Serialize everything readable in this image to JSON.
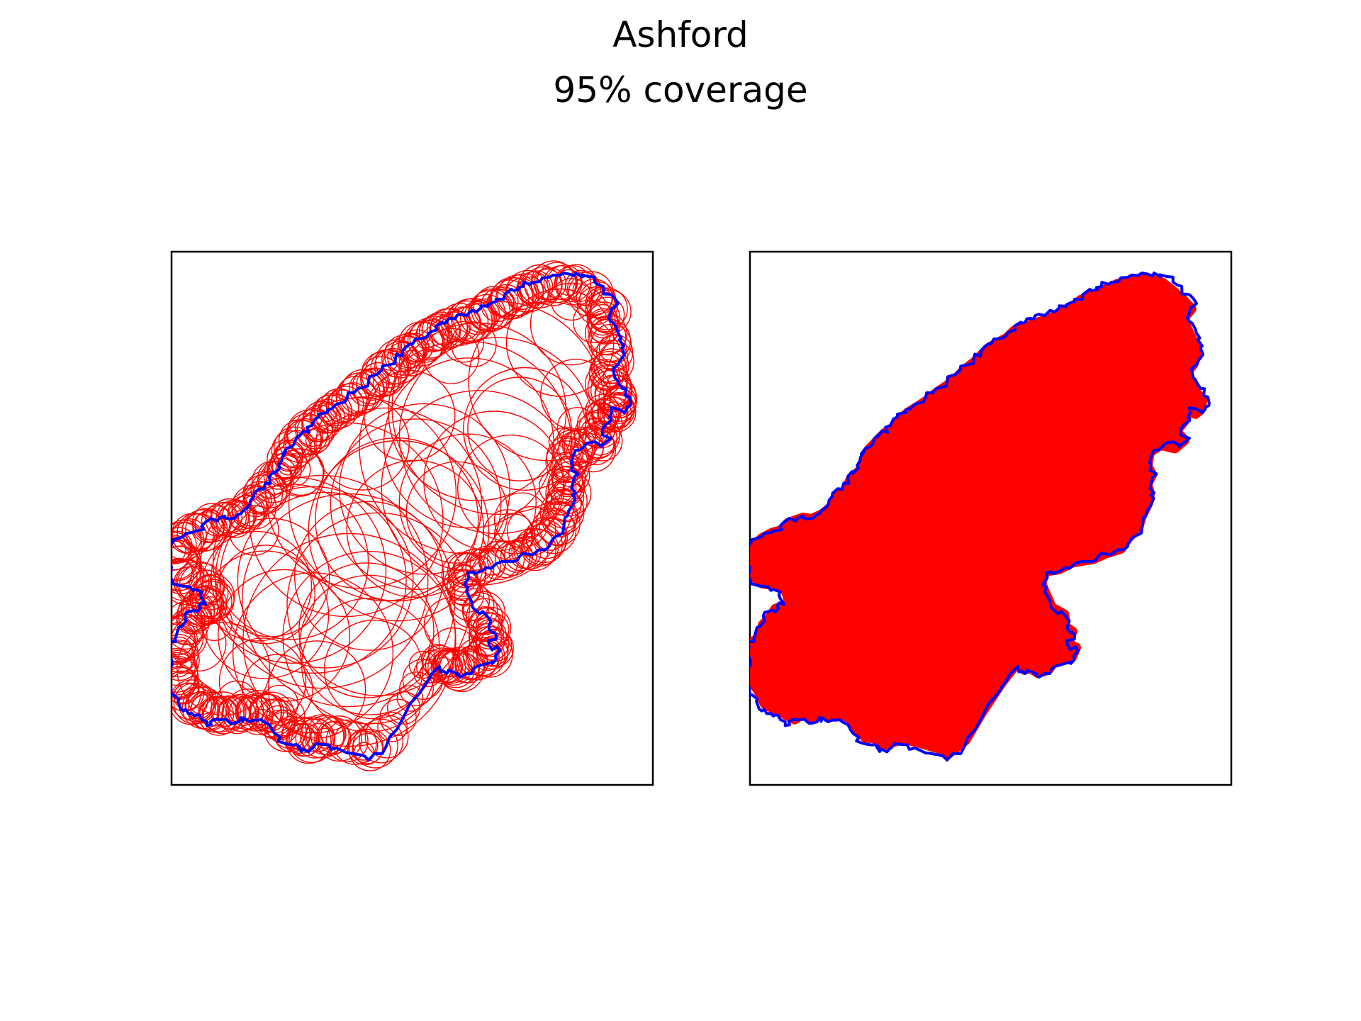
{
  "figure": {
    "title": "Ashford",
    "subtitle": "95% coverage"
  },
  "panels": [
    {
      "name": "circle-coverage-panel",
      "style": "circle-outlines"
    },
    {
      "name": "filled-coverage-panel",
      "style": "filled-union"
    }
  ],
  "colors": {
    "boundary": "#0000ff",
    "coverage": "#ff0000",
    "frame": "#000000",
    "background": "#ffffff"
  }
}
